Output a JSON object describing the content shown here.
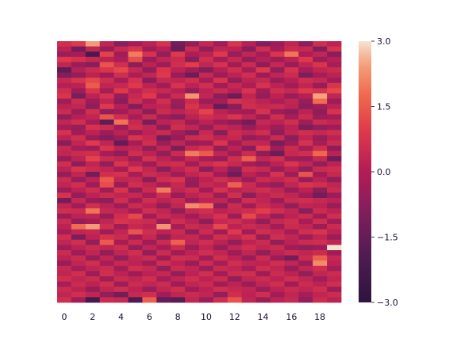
{
  "chart_data": {
    "type": "heatmap",
    "title": "",
    "xlabel": "",
    "ylabel": "",
    "x_tick_labels": [
      "0",
      "2",
      "4",
      "6",
      "8",
      "10",
      "12",
      "14",
      "16",
      "18"
    ],
    "x_tick_indices": [
      0,
      2,
      4,
      6,
      8,
      10,
      12,
      14,
      16,
      18
    ],
    "n_columns": 20,
    "n_rows": 50,
    "vmin": -3.0,
    "vmax": 3.0,
    "colormap": "rocket",
    "colorbar": {
      "ticks": [
        3.0,
        1.5,
        0.0,
        -1.5,
        -3.0
      ],
      "tick_labels": [
        "3.0",
        "1.5",
        "0.0",
        "−1.5",
        "−3.0"
      ]
    },
    "values": [
      [
        0.6,
        0.9,
        2.4,
        0.3,
        -0.8,
        -0.2,
        0.2,
        0.7,
        -1.2,
        -0.6,
        0.4,
        -0.3,
        0.8,
        0.1,
        -0.9,
        -0.4,
        0.3,
        -0.7,
        0.6,
        0.2
      ],
      [
        0.2,
        -1.2,
        0.3,
        -0.5,
        0.4,
        0.8,
        -0.3,
        0.1,
        -1.4,
        0.5,
        -0.6,
        0.3,
        0.2,
        -0.8,
        0.6,
        -0.2,
        0.5,
        0.4,
        -0.9,
        0.7
      ],
      [
        -0.4,
        -0.2,
        -2.1,
        1.1,
        -0.3,
        2.0,
        0.7,
        -0.6,
        0.9,
        -0.1,
        0.2,
        0.9,
        -0.5,
        0.3,
        -0.2,
        0.8,
        1.9,
        -0.1,
        0.3,
        -0.8
      ],
      [
        0.9,
        0.7,
        0.4,
        0.2,
        -0.1,
        1.3,
        -0.4,
        0.3,
        0.5,
        -0.8,
        0.6,
        -0.2,
        0.4,
        -0.6,
        0.1,
        -0.3,
        0.2,
        0.9,
        -0.4,
        0.1
      ],
      [
        0.3,
        -0.5,
        -0.8,
        1.4,
        0.6,
        -0.7,
        0.2,
        -0.4,
        0.6,
        1.0,
        0.3,
        0.7,
        -0.3,
        0.5,
        -0.7,
        0.4,
        -0.5,
        0.3,
        0.8,
        -0.2
      ],
      [
        -1.6,
        0.1,
        0.5,
        0.8,
        1.2,
        0.4,
        -0.6,
        0.8,
        0.2,
        -0.3,
        -0.9,
        0.1,
        0.6,
        -0.2,
        0.9,
        -0.6,
        0.7,
        -0.2,
        0.3,
        0.5
      ],
      [
        -0.9,
        -0.6,
        0.2,
        -0.3,
        0.6,
        -0.1,
        0.3,
        0.9,
        -0.5,
        -1.3,
        0.4,
        -0.4,
        0.2,
        0.6,
        -0.4,
        0.3,
        0.5,
        -1.0,
        -0.2,
        0.2
      ],
      [
        0.4,
        0.8,
        1.2,
        0.6,
        -0.2,
        0.7,
        -0.8,
        0.4,
        0.3,
        0.6,
        -0.2,
        0.8,
        -0.6,
        0.2,
        0.4,
        -0.5,
        0.1,
        0.6,
        0.4,
        -0.3
      ],
      [
        0.1,
        0.2,
        1.5,
        0.3,
        0.4,
        0.9,
        0.2,
        -0.3,
        0.7,
        0.2,
        0.6,
        -0.3,
        0.4,
        -0.1,
        0.7,
        0.2,
        -0.3,
        0.3,
        -0.5,
        0.8
      ],
      [
        0.6,
        -0.4,
        0.8,
        -0.2,
        0.9,
        0.2,
        0.6,
        0.4,
        0.1,
        -0.6,
        0.2,
        0.5,
        0.1,
        0.8,
        -0.3,
        0.6,
        0.4,
        0.9,
        0.7,
        1.2
      ],
      [
        0.8,
        -1.1,
        0.2,
        0.7,
        -0.5,
        0.4,
        0.9,
        -0.2,
        0.5,
        2.3,
        0.3,
        -0.7,
        -1.4,
        0.3,
        -0.6,
        0.2,
        -0.5,
        0.1,
        2.5,
        0.3
      ],
      [
        -0.3,
        0.5,
        -0.4,
        0.3,
        -0.8,
        0.6,
        -0.1,
        0.6,
        -0.4,
        0.5,
        -0.4,
        -0.2,
        0.7,
        0.5,
        0.2,
        -0.1,
        0.3,
        -0.5,
        1.8,
        -0.4
      ],
      [
        0.2,
        0.3,
        -0.7,
        0.9,
        0.1,
        -0.9,
        0.2,
        0.3,
        -0.6,
        0.8,
        0.2,
        -1.5,
        -0.8,
        0.6,
        0.4,
        0.5,
        0.2,
        -0.8,
        -0.3,
        0.2
      ],
      [
        0.5,
        -0.4,
        0.6,
        -0.6,
        -0.3,
        0.3,
        -0.7,
        0.5,
        0.2,
        0.5,
        1.1,
        0.2,
        -0.2,
        -0.3,
        0.7,
        -0.4,
        -0.7,
        0.2,
        -0.7,
        0.7
      ],
      [
        -0.6,
        0.1,
        0.3,
        1.4,
        0.6,
        -0.2,
        0.5,
        -0.4,
        -0.8,
        0.2,
        0.6,
        0.4,
        0.8,
        0.3,
        -0.4,
        0.6,
        -0.2,
        0.5,
        -0.4,
        -0.2
      ],
      [
        0.3,
        0.6,
        -0.2,
        -1.6,
        1.9,
        0.4,
        -1.1,
        0.2,
        0.4,
        -0.4,
        0.2,
        -0.3,
        -0.7,
        -1.2,
        0.4,
        0.2,
        0.6,
        -0.3,
        0.5,
        0.3
      ],
      [
        -0.2,
        -0.5,
        0.7,
        0.5,
        -0.3,
        0.6,
        0.3,
        -0.7,
        0.6,
        0.3,
        -0.5,
        0.4,
        0.2,
        -0.5,
        0.1,
        -0.4,
        0.2,
        -1.0,
        -0.6,
        -0.3
      ],
      [
        0.7,
        -0.3,
        0.2,
        -0.4,
        0.2,
        -0.5,
        0.2,
        0.5,
        -0.2,
        -0.9,
        0.4,
        -0.8,
        0.5,
        0.3,
        0.6,
        -0.7,
        0.3,
        0.6,
        0.4,
        0.6
      ],
      [
        0.2,
        0.6,
        -0.5,
        -0.9,
        -0.4,
        0.8,
        0.4,
        -1.2,
        -0.6,
        0.5,
        0.6,
        0.2,
        0.4,
        -0.6,
        -0.2,
        0.5,
        -0.7,
        0.3,
        -0.5,
        0.2
      ],
      [
        -0.8,
        0.3,
        0.9,
        0.3,
        -1.5,
        -0.2,
        0.6,
        -0.4,
        0.3,
        -0.5,
        -0.3,
        0.8,
        -0.3,
        0.4,
        0.3,
        -1.1,
        -0.4,
        0.7,
        -0.2,
        0.5
      ],
      [
        0.4,
        -0.2,
        -0.3,
        0.8,
        0.2,
        0.3,
        -0.6,
        0.3,
        -1.0,
        0.4,
        0.7,
        -0.6,
        0.2,
        -0.8,
        1.0,
        -0.3,
        0.5,
        -0.2,
        0.6,
        -0.7
      ],
      [
        0.3,
        0.5,
        0.6,
        -0.2,
        -0.7,
        0.6,
        0.2,
        -0.6,
        0.5,
        2.0,
        1.5,
        0.3,
        -0.4,
        0.5,
        -0.7,
        -1.4,
        0.4,
        0.6,
        1.7,
        0.2
      ],
      [
        -0.5,
        0.2,
        1.1,
        0.5,
        0.3,
        -0.4,
        0.7,
        0.2,
        -0.3,
        0.4,
        -0.2,
        -0.5,
        0.6,
        1.6,
        0.3,
        0.6,
        -0.3,
        -0.4,
        0.4,
        -1.3
      ],
      [
        0.6,
        -0.7,
        0.3,
        -0.6,
        0.8,
        0.2,
        -0.4,
        0.5,
        0.6,
        -0.3,
        0.5,
        0.8,
        0.4,
        -0.2,
        -0.6,
        0.2,
        0.8,
        0.3,
        -0.6,
        0.2
      ],
      [
        0.2,
        0.8,
        0.5,
        0.3,
        -0.2,
        0.9,
        0.3,
        -0.7,
        0.2,
        0.6,
        -0.7,
        0.2,
        -0.8,
        0.6,
        0.4,
        -0.5,
        0.2,
        -0.6,
        0.5,
        0.6
      ],
      [
        -0.6,
        0.3,
        -1.2,
        0.6,
        0.7,
        -0.2,
        0.5,
        0.3,
        -0.4,
        0.3,
        0.6,
        -0.3,
        -1.3,
        0.2,
        -0.3,
        0.7,
        -0.4,
        1.4,
        -0.3,
        0.4
      ],
      [
        0.5,
        -0.5,
        0.2,
        1.5,
        0.3,
        0.4,
        -0.7,
        0.6,
        0.8,
        -0.5,
        0.2,
        0.6,
        0.3,
        -0.4,
        0.5,
        0.3,
        0.6,
        -0.5,
        0.2,
        -0.6
      ],
      [
        0.3,
        0.6,
        -0.4,
        1.3,
        -0.5,
        0.6,
        0.3,
        -0.2,
        0.4,
        -0.6,
        0.4,
        0.2,
        1.6,
        0.5,
        -0.2,
        -0.6,
        0.3,
        0.8,
        0.6,
        0.3
      ],
      [
        -0.4,
        0.2,
        0.6,
        -0.3,
        0.8,
        -0.6,
        0.5,
        2.0,
        0.3,
        0.6,
        -0.3,
        0.7,
        0.2,
        0.4,
        0.6,
        0.3,
        -0.5,
        0.2,
        -0.7,
        0.5
      ],
      [
        0.7,
        -0.6,
        0.2,
        0.5,
        0.3,
        0.4,
        -0.2,
        0.6,
        -0.5,
        0.2,
        0.5,
        -0.4,
        0.6,
        -0.7,
        0.2,
        0.5,
        0.3,
        -0.3,
        -1.2,
        -0.4
      ],
      [
        -1.2,
        0.4,
        -0.5,
        -0.7,
        0.6,
        -0.3,
        0.6,
        0.2,
        0.5,
        -0.4,
        0.2,
        0.3,
        -0.5,
        0.6,
        0.3,
        -0.4,
        0.5,
        0.6,
        0.4,
        0.2
      ],
      [
        0.3,
        -0.3,
        0.6,
        0.2,
        -0.4,
        0.5,
        0.2,
        -0.6,
        0.3,
        2.2,
        1.9,
        -0.7,
        0.5,
        -0.3,
        0.5,
        0.2,
        -0.6,
        0.3,
        0.2,
        -0.5
      ],
      [
        0.6,
        0.5,
        1.9,
        0.4,
        0.3,
        -0.2,
        0.6,
        0.3,
        -0.6,
        0.4,
        0.6,
        0.2,
        0.4,
        0.6,
        1.0,
        0.6,
        0.3,
        -0.8,
        0.5,
        0.2
      ],
      [
        -0.4,
        0.2,
        0.3,
        -0.5,
        0.6,
        1.2,
        -0.3,
        0.5,
        0.2,
        -0.3,
        0.3,
        0.7,
        -0.4,
        1.2,
        0.3,
        -0.5,
        0.2,
        0.5,
        -0.3,
        0.6
      ],
      [
        0.5,
        -0.6,
        -0.2,
        0.3,
        0.8,
        0.6,
        0.5,
        -0.4,
        0.6,
        0.2,
        -0.7,
        0.4,
        0.6,
        0.2,
        -0.6,
        0.4,
        0.6,
        -0.2,
        0.6,
        -0.3
      ],
      [
        0.2,
        1.8,
        2.4,
        0.6,
        -0.3,
        0.4,
        0.2,
        2.3,
        -0.2,
        0.5,
        0.3,
        1.2,
        0.2,
        0.5,
        0.3,
        -0.3,
        0.5,
        0.3,
        -0.4,
        0.5
      ],
      [
        -0.2,
        0.3,
        0.4,
        -0.4,
        0.3,
        1.4,
        0.6,
        0.2,
        0.5,
        -0.6,
        0.5,
        -0.3,
        0.9,
        -0.3,
        0.6,
        0.4,
        -0.2,
        0.6,
        0.8,
        0.2
      ],
      [
        0.6,
        -1.0,
        0.2,
        0.7,
        0.5,
        -0.3,
        0.4,
        -0.6,
        0.3,
        0.4,
        -0.2,
        0.6,
        0.3,
        0.7,
        -0.5,
        0.6,
        0.3,
        -0.3,
        0.3,
        -0.4
      ],
      [
        0.3,
        0.6,
        -0.6,
        1.5,
        -0.2,
        0.5,
        -0.4,
        0.5,
        1.6,
        0.3,
        0.6,
        0.2,
        -0.6,
        0.2,
        0.5,
        -0.6,
        0.2,
        0.5,
        0.6,
        0.3
      ],
      [
        -0.3,
        0.2,
        0.5,
        0.3,
        0.6,
        -0.5,
        0.3,
        -0.2,
        0.5,
        -0.4,
        0.3,
        -0.5,
        0.3,
        0.6,
        0.3,
        0.5,
        -0.3,
        -0.6,
        -0.4,
        3.0
      ],
      [
        0.5,
        -0.4,
        0.3,
        -0.6,
        0.3,
        0.6,
        -0.6,
        0.5,
        -0.3,
        0.2,
        0.6,
        0.3,
        -0.4,
        0.3,
        -0.6,
        0.2,
        0.5,
        0.3,
        0.5,
        -0.3
      ],
      [
        0.2,
        0.5,
        -0.5,
        0.3,
        -0.6,
        0.3,
        0.5,
        -0.4,
        0.6,
        0.5,
        -0.3,
        0.6,
        0.2,
        -0.5,
        0.5,
        -0.4,
        -1.2,
        0.5,
        1.6,
        0.4
      ],
      [
        -0.5,
        0.3,
        0.6,
        -0.2,
        0.4,
        0.2,
        -0.3,
        0.6,
        0.2,
        -0.5,
        0.5,
        -0.2,
        0.6,
        0.3,
        0.2,
        0.6,
        0.3,
        -0.4,
        2.2,
        0.2
      ],
      [
        0.4,
        -0.2,
        0.3,
        0.5,
        -0.3,
        0.6,
        0.4,
        -0.6,
        0.5,
        0.3,
        -0.4,
        0.5,
        0.3,
        -0.2,
        0.6,
        0.3,
        -0.5,
        0.3,
        0.6,
        -0.2
      ],
      [
        0.3,
        0.6,
        -0.4,
        0.6,
        0.2,
        -0.4,
        0.2,
        0.4,
        -0.6,
        0.2,
        0.6,
        -0.3,
        0.5,
        0.6,
        -0.4,
        0.5,
        0.2,
        -0.6,
        0.3,
        0.5
      ],
      [
        0.6,
        0.3,
        0.5,
        -0.3,
        0.5,
        0.3,
        0.6,
        -0.2,
        0.3,
        0.6,
        0.2,
        0.5,
        -0.6,
        0.3,
        0.5,
        0.2,
        0.6,
        0.3,
        -0.3,
        0.3
      ],
      [
        -0.2,
        0.5,
        0.2,
        0.6,
        -0.4,
        0.5,
        0.3,
        0.5,
        -0.4,
        0.3,
        0.5,
        -0.3,
        0.2,
        -0.5,
        0.3,
        0.6,
        -0.3,
        0.5,
        0.2,
        0.6
      ],
      [
        0.5,
        0.2,
        -0.5,
        0.3,
        0.6,
        0.2,
        -0.5,
        0.3,
        0.6,
        -0.3,
        0.2,
        0.6,
        0.4,
        0.3,
        -0.4,
        0.2,
        0.5,
        0.3,
        0.6,
        -0.4
      ],
      [
        0.3,
        0.6,
        0.3,
        -0.6,
        -1.2,
        0.4,
        0.6,
        -0.3,
        0.3,
        0.5,
        0.3,
        -0.6,
        0.6,
        0.2,
        0.6,
        -0.3,
        0.3,
        -0.2,
        0.3,
        0.5
      ],
      [
        0.6,
        -0.3,
        -2.2,
        0.5,
        0.4,
        -2.0,
        1.6,
        -1.5,
        -1.7,
        0.3,
        -0.4,
        0.6,
        1.4,
        0.3,
        -0.4,
        0.2,
        0.4,
        -0.6,
        0.5,
        0.2
      ]
    ]
  }
}
